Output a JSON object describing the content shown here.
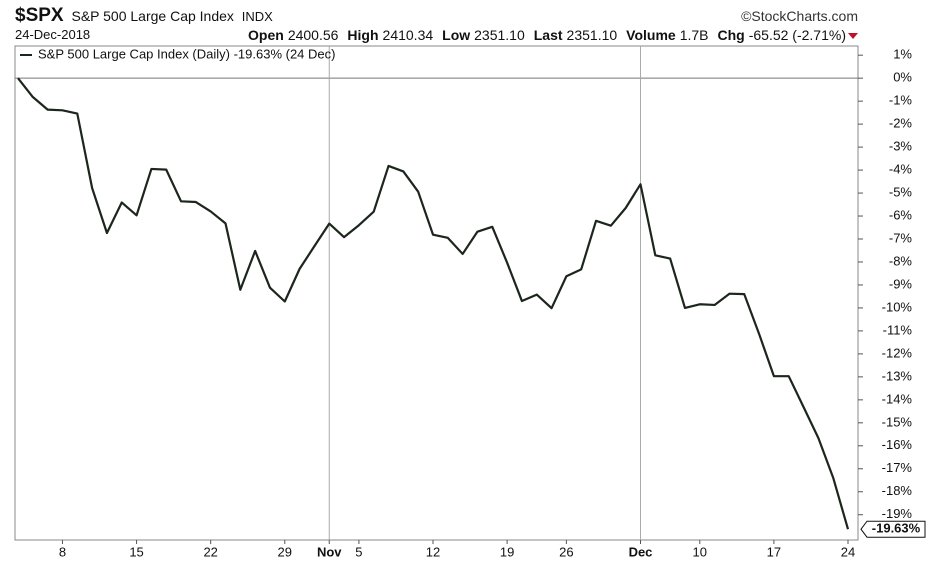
{
  "chart_data": {
    "type": "line",
    "title": "$SPX",
    "subtitle": "S&P 500 Large Cap Index",
    "exchange": "INDX",
    "credit": "©StockCharts.com",
    "date": "24-Dec-2018",
    "quote": [
      {
        "label": "Open",
        "value": "2400.56"
      },
      {
        "label": "High",
        "value": "2410.34"
      },
      {
        "label": "Low",
        "value": "2351.10"
      },
      {
        "label": "Last",
        "value": "2351.10"
      },
      {
        "label": "Volume",
        "value": "1.7B"
      },
      {
        "label": "Chg",
        "value": "-65.52 (-2.71%)"
      }
    ],
    "categories": [
      null,
      null,
      null,
      "8",
      null,
      null,
      null,
      null,
      "15",
      null,
      null,
      null,
      null,
      "22",
      null,
      null,
      null,
      null,
      "29",
      null,
      null,
      "Nov",
      null,
      "5",
      null,
      null,
      null,
      null,
      "12",
      null,
      null,
      null,
      null,
      "19",
      null,
      null,
      null,
      "26",
      null,
      null,
      null,
      null,
      "Dec",
      null,
      null,
      null,
      "10",
      null,
      null,
      null,
      null,
      "17",
      null,
      null,
      null,
      null,
      "24"
    ],
    "series": [
      {
        "name": "S&P 500 Large Cap Index (Daily) -19.63% (24 Dec)",
        "color": "#1c261c",
        "values": [
          0,
          -0.82,
          -1.37,
          -1.4,
          -1.54,
          -4.78,
          -6.74,
          -5.41,
          -5.97,
          -3.95,
          -3.98,
          -5.36,
          -5.39,
          -5.8,
          -6.32,
          -9.21,
          -7.52,
          -9.12,
          -9.72,
          -8.3,
          -7.31,
          -6.33,
          -6.92,
          -6.4,
          -5.81,
          -3.82,
          -4.06,
          -4.94,
          -6.81,
          -6.95,
          -7.65,
          -6.68,
          -6.47,
          -8.03,
          -9.7,
          -9.42,
          -10.01,
          -8.62,
          -8.32,
          -6.21,
          -6.42,
          -5.65,
          -4.62,
          -7.71,
          -7.85,
          -10.0,
          -9.84,
          -9.87,
          -9.38,
          -9.4,
          -11.13,
          -12.97,
          -12.97,
          -14.31,
          -15.66,
          -17.39,
          -19.63
        ],
        "value_labels": [
          null,
          null,
          null,
          null,
          null,
          null,
          null,
          null,
          null,
          null,
          null,
          null,
          null,
          null,
          null,
          null,
          null,
          null,
          null,
          null,
          null,
          null,
          null,
          null,
          null,
          null,
          null,
          null,
          null,
          null,
          null,
          null,
          null,
          null,
          null,
          null,
          null,
          null,
          null,
          null,
          null,
          null,
          null,
          null,
          null,
          null,
          null,
          null,
          null,
          null,
          null,
          null,
          null,
          null,
          null,
          null,
          "-19.63%"
        ]
      }
    ],
    "ylim": [
      -20.1,
      1.4
    ],
    "yticks": [
      {
        "value": 1,
        "label": "1%"
      },
      {
        "value": 0,
        "label": "0%"
      },
      {
        "value": -1,
        "label": "-1%"
      },
      {
        "value": -2,
        "label": "-2%"
      },
      {
        "value": -3,
        "label": "-3%"
      },
      {
        "value": -4,
        "label": "-4%"
      },
      {
        "value": -5,
        "label": "-5%"
      },
      {
        "value": -6,
        "label": "-6%"
      },
      {
        "value": -7,
        "label": "-7%"
      },
      {
        "value": -8,
        "label": "-8%"
      },
      {
        "value": -9,
        "label": "-9%"
      },
      {
        "value": -10,
        "label": "-10%"
      },
      {
        "value": -11,
        "label": "-11%"
      },
      {
        "value": -12,
        "label": "-12%"
      },
      {
        "value": -13,
        "label": "-13%"
      },
      {
        "value": -14,
        "label": "-14%"
      },
      {
        "value": -15,
        "label": "-15%"
      },
      {
        "value": -16,
        "label": "-16%"
      },
      {
        "value": -17,
        "label": "-17%"
      },
      {
        "value": -18,
        "label": "-18%"
      },
      {
        "value": -19,
        "label": "-19%"
      }
    ]
  }
}
